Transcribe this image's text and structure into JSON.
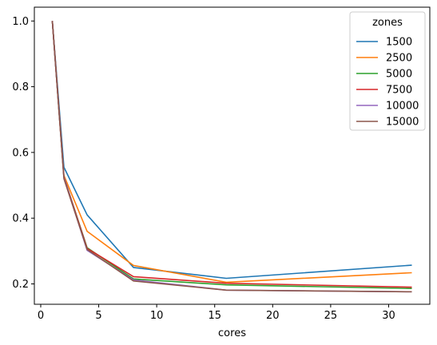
{
  "chart_data": {
    "type": "line",
    "title": "",
    "xlabel": "cores",
    "ylabel": "",
    "xlim": [
      -0.55,
      33.55
    ],
    "ylim": [
      0.138,
      1.042
    ],
    "xticks": [
      0,
      5,
      10,
      15,
      20,
      25,
      30
    ],
    "yticks": [
      0.2,
      0.4,
      0.6,
      0.8,
      1.0
    ],
    "xtick_labels": [
      "0",
      "5",
      "10",
      "15",
      "20",
      "25",
      "30"
    ],
    "ytick_labels": [
      "0.2",
      "0.4",
      "0.6",
      "0.8",
      "1.0"
    ],
    "grid": false,
    "legend": {
      "title": "zones",
      "placement": "top-right"
    },
    "x": [
      1,
      2,
      4,
      8,
      16,
      32
    ],
    "series": [
      {
        "name": "1500",
        "color": "#1f77b4",
        "values": [
          1.0,
          0.555,
          0.41,
          0.25,
          0.217,
          0.257
        ]
      },
      {
        "name": "2500",
        "color": "#ff7f0e",
        "values": [
          1.0,
          0.53,
          0.36,
          0.256,
          0.205,
          0.234
        ]
      },
      {
        "name": "5000",
        "color": "#2ca02c",
        "values": [
          1.0,
          0.525,
          0.31,
          0.215,
          0.197,
          0.186
        ]
      },
      {
        "name": "7500",
        "color": "#d62728",
        "values": [
          1.0,
          0.525,
          0.308,
          0.222,
          0.202,
          0.19
        ]
      },
      {
        "name": "10000",
        "color": "#9467bd",
        "values": [
          1.0,
          0.524,
          0.302,
          0.212,
          0.181,
          0.176
        ]
      },
      {
        "name": "15000",
        "color": "#8c564b",
        "values": [
          1.0,
          0.52,
          0.305,
          0.209,
          0.181,
          0.176
        ]
      }
    ]
  }
}
